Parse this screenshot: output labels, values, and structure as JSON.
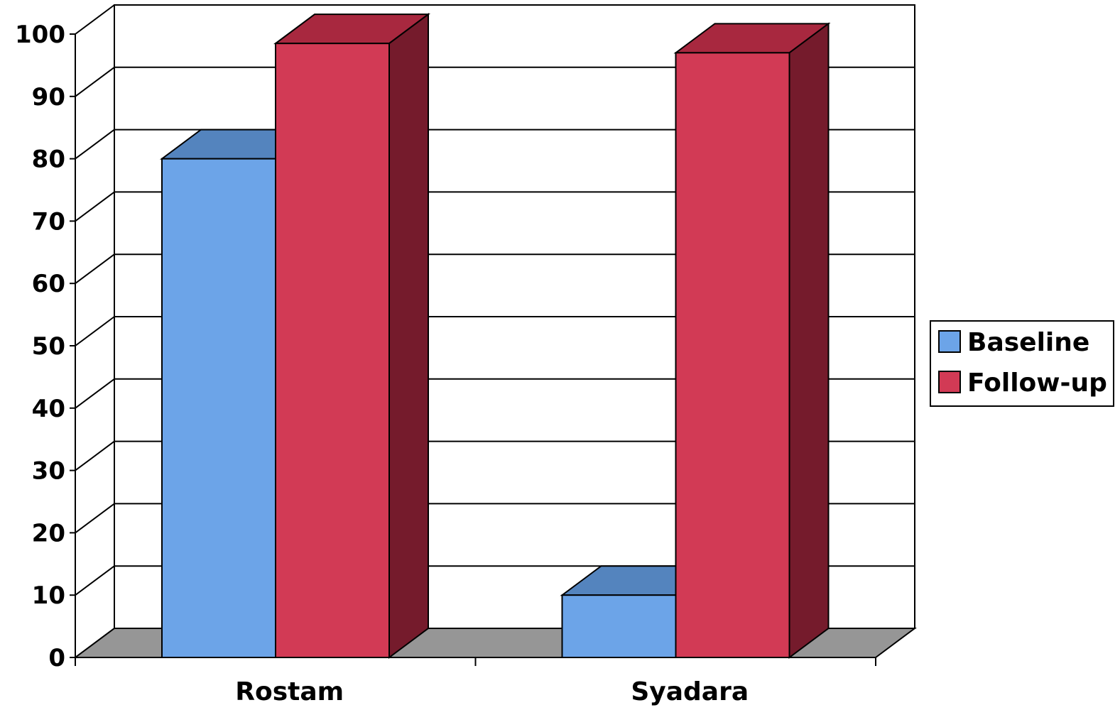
{
  "chart_data": {
    "type": "bar",
    "style": "3d-clustered-column",
    "categories": [
      "Rostam",
      "Syadara"
    ],
    "series": [
      {
        "name": "Baseline",
        "values": [
          80,
          10
        ],
        "color": "#6CA4E8",
        "top_color": "#5484BE",
        "side_color": "#4A73A6"
      },
      {
        "name": "Follow-up",
        "values": [
          98.5,
          97
        ],
        "color": "#D23A55",
        "top_color": "#A8283F",
        "side_color": "#751B2C"
      }
    ],
    "ylim": [
      0,
      100
    ],
    "yticks": [
      "0",
      "10",
      "20",
      "30",
      "40",
      "50",
      "60",
      "70",
      "80",
      "90",
      "100"
    ],
    "grid": true,
    "legend": "right",
    "floor_color": "#969696",
    "title": "",
    "xlabel": "",
    "ylabel": ""
  }
}
